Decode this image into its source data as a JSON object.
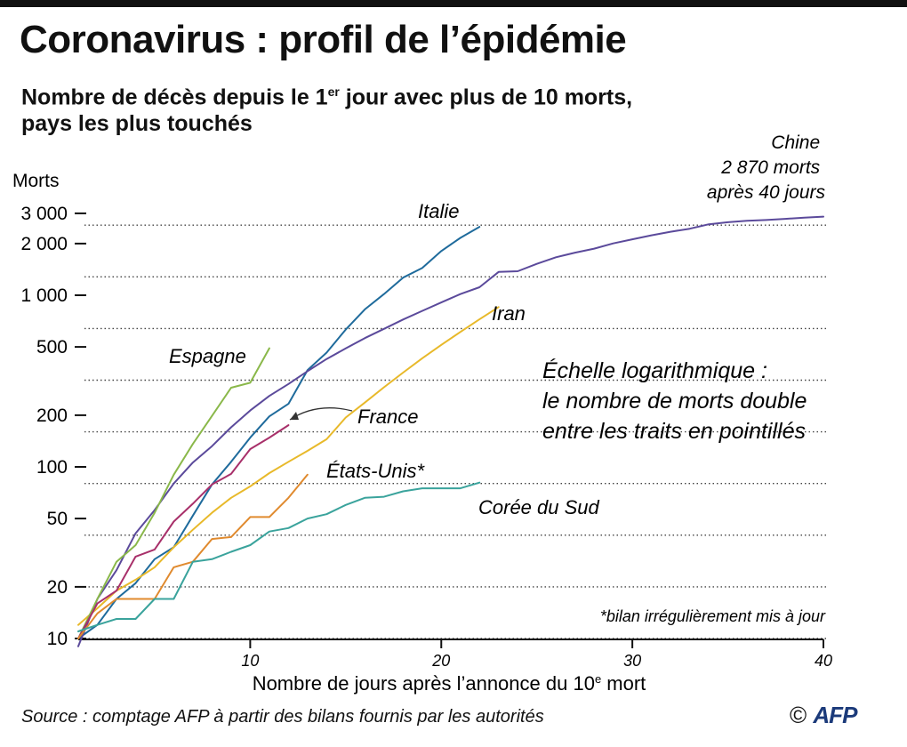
{
  "header": {
    "title": "Coronavirus : profil de l’épidémie",
    "subtitle_part1": "Nombre de décès depuis le 1",
    "subtitle_sup": "er",
    "subtitle_part2": " jour avec plus de 10 morts,",
    "subtitle_line2": "pays les plus touchés"
  },
  "footer": {
    "source": "Source : comptage AFP à partir des bilans fournis par les autorités",
    "copyright": "©",
    "logo_text": "AFP"
  },
  "chart_data": {
    "type": "line",
    "y_scale": "log",
    "ylabel": "Morts",
    "xlabel_part1": "Nombre de jours après l’annonce du 10",
    "xlabel_sup": "e",
    "xlabel_part2": " mort",
    "xlim": [
      1,
      40
    ],
    "ylim": [
      10,
      3000
    ],
    "y_ticks": [
      {
        "value": 10,
        "label": "10"
      },
      {
        "value": 20,
        "label": "20"
      },
      {
        "value": 50,
        "label": "50"
      },
      {
        "value": 100,
        "label": "100"
      },
      {
        "value": 200,
        "label": "200"
      },
      {
        "value": 500,
        "label": "500"
      },
      {
        "value": 1000,
        "label": "1 000"
      },
      {
        "value": 2000,
        "label": "2 000"
      },
      {
        "value": 3000,
        "label": "3 000"
      }
    ],
    "x_ticks": [
      {
        "value": 10,
        "label": "10"
      },
      {
        "value": 20,
        "label": "20"
      },
      {
        "value": 30,
        "label": "30"
      },
      {
        "value": 40,
        "label": "40"
      }
    ],
    "dotted_gridlines": [
      10,
      20,
      40,
      80,
      160,
      320,
      640,
      1280,
      2560
    ],
    "annotations": {
      "scale_note": [
        "Échelle logarithmique :",
        "le nombre de morts double",
        "entre les traits en pointillés"
      ],
      "footnote": "*bilan irrégulièrement mis à jour",
      "china_note": [
        "Chine",
        "2 870 morts",
        "après 40 jours"
      ]
    },
    "series": [
      {
        "name": "Italie",
        "color": "#1f6b9c",
        "x": [
          1,
          2,
          3,
          4,
          5,
          6,
          7,
          8,
          9,
          10,
          11,
          12,
          13,
          14,
          15,
          16,
          17,
          18,
          19,
          20,
          21,
          22
        ],
        "y": [
          10,
          12,
          17,
          21,
          29,
          34,
          52,
          79,
          107,
          148,
          197,
          233,
          366,
          463,
          631,
          827,
          1016,
          1266,
          1441,
          1809,
          2158,
          2503
        ]
      },
      {
        "name": "Chine",
        "color": "#5b4a9b",
        "x": [
          1,
          2,
          3,
          4,
          5,
          6,
          7,
          8,
          9,
          10,
          11,
          12,
          13,
          14,
          15,
          16,
          17,
          18,
          19,
          20,
          21,
          22,
          23,
          24,
          25,
          26,
          27,
          28,
          29,
          30,
          31,
          32,
          33,
          34,
          35,
          36,
          37,
          38,
          39,
          40
        ],
        "y": [
          9,
          17,
          25,
          41,
          56,
          80,
          106,
          132,
          170,
          213,
          259,
          304,
          361,
          425,
          490,
          563,
          637,
          722,
          811,
          908,
          1016,
          1113,
          1367,
          1380,
          1523,
          1665,
          1770,
          1868,
          2004,
          2118,
          2236,
          2345,
          2442,
          2592,
          2663,
          2715,
          2744,
          2788,
          2835,
          2870
        ]
      },
      {
        "name": "Iran",
        "color": "#e8b92a",
        "x": [
          1,
          2,
          3,
          4,
          5,
          6,
          7,
          8,
          9,
          10,
          11,
          12,
          13,
          14,
          15,
          16,
          17,
          18,
          19,
          20,
          21,
          22,
          23
        ],
        "y": [
          12,
          15,
          19,
          22,
          26,
          34,
          43,
          54,
          66,
          77,
          92,
          107,
          124,
          145,
          194,
          237,
          291,
          354,
          429,
          514,
          611,
          724,
          853
        ]
      },
      {
        "name": "Espagne",
        "color": "#8ab84a",
        "x": [
          1,
          2,
          3,
          4,
          5,
          6,
          7,
          8,
          9,
          10,
          11
        ],
        "y": [
          10,
          17,
          28,
          35,
          54,
          90,
          136,
          198,
          289,
          309,
          491
        ]
      },
      {
        "name": "France",
        "color": "#a8306a",
        "x": [
          1,
          2,
          3,
          4,
          5,
          6,
          7,
          8,
          9,
          10,
          11,
          12
        ],
        "y": [
          10,
          16,
          19,
          30,
          33,
          48,
          61,
          79,
          91,
          127,
          148,
          175
        ]
      },
      {
        "name": "États-Unis*",
        "color": "#e08a2e",
        "x": [
          1,
          2,
          3,
          4,
          5,
          6,
          7,
          8,
          9,
          10,
          11,
          12,
          13
        ],
        "y": [
          10,
          14,
          17,
          17,
          17,
          26,
          28,
          38,
          39,
          51,
          51,
          66,
          90
        ]
      },
      {
        "name": "Corée du Sud",
        "color": "#3aa39c",
        "x": [
          1,
          2,
          3,
          4,
          5,
          6,
          7,
          8,
          9,
          10,
          11,
          12,
          13,
          14,
          15,
          16,
          17,
          18,
          19,
          20,
          21,
          22
        ],
        "y": [
          11,
          12,
          13,
          13,
          17,
          17,
          28,
          29,
          32,
          35,
          42,
          44,
          50,
          53,
          60,
          66,
          67,
          72,
          75,
          75,
          75,
          81
        ]
      }
    ]
  }
}
